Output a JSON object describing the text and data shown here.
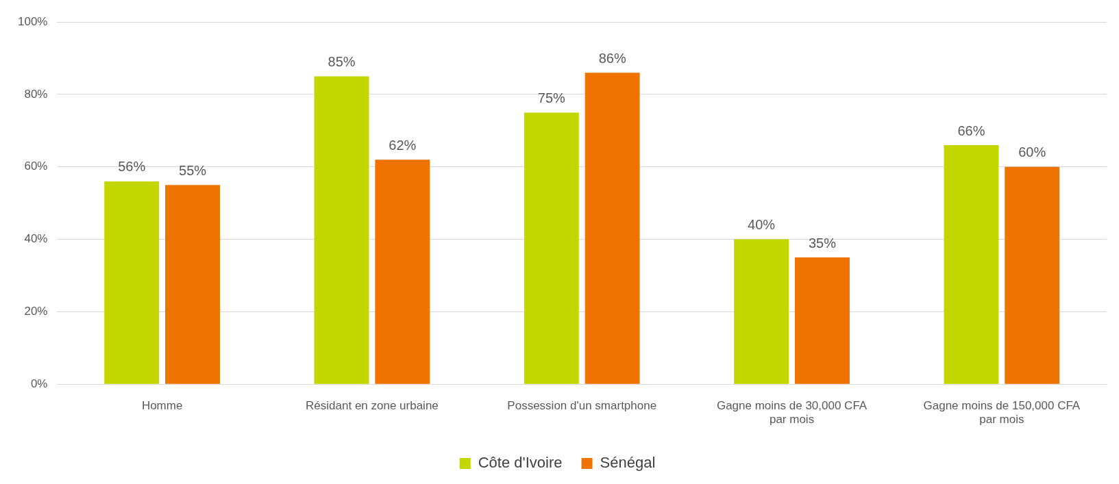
{
  "chart_data": {
    "type": "bar",
    "categories": [
      "Homme",
      "Résidant en zone urbaine",
      "Possession d'un smartphone",
      "Gagne moins de 30,000 CFA par mois",
      "Gagne moins de 150,000 CFA par mois"
    ],
    "series": [
      {
        "name": "Côte d'Ivoire",
        "color": "#c3d600",
        "values": [
          56,
          85,
          75,
          40,
          66
        ],
        "value_labels": [
          "56%",
          "85%",
          "75%",
          "40%",
          "66%"
        ]
      },
      {
        "name": "Sénégal",
        "color": "#ef7300",
        "values": [
          55,
          62,
          86,
          35,
          60
        ],
        "value_labels": [
          "55%",
          "62%",
          "86%",
          "35%",
          "60%"
        ]
      }
    ],
    "ylim": [
      0,
      100
    ],
    "yticks": [
      {
        "value": 0,
        "label": "0%"
      },
      {
        "value": 20,
        "label": "20%"
      },
      {
        "value": 40,
        "label": "40%"
      },
      {
        "value": 60,
        "label": "60%"
      },
      {
        "value": 80,
        "label": "80%"
      },
      {
        "value": 100,
        "label": "100%"
      }
    ],
    "grid": "y",
    "legend": "bottom"
  }
}
